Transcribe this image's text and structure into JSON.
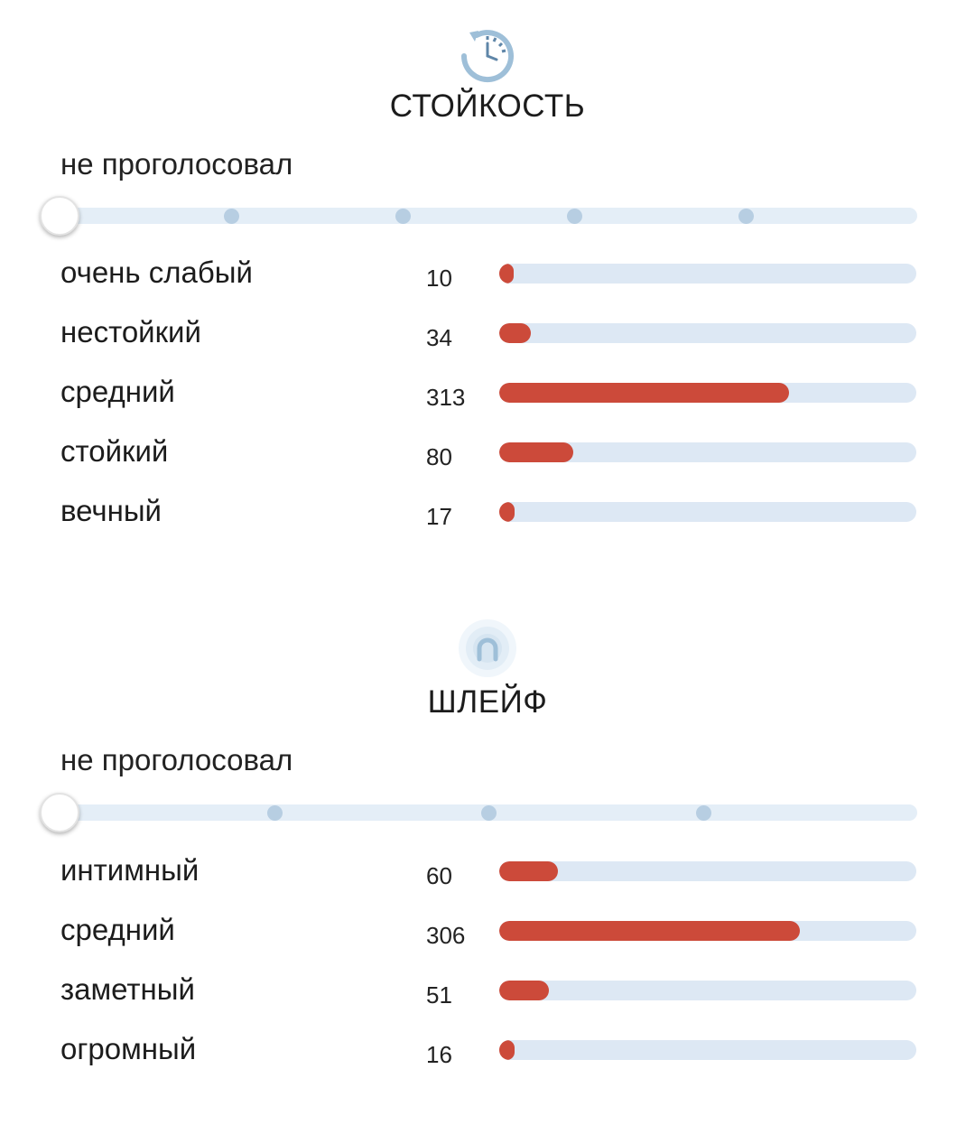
{
  "colors": {
    "accent_bar": "#cc4a3a",
    "track": "#dde8f4",
    "slider_track": "#e4eef7",
    "slider_dot": "#b7cee2",
    "icon": "#9ebfd8"
  },
  "sections": [
    {
      "icon": "stopwatch-icon",
      "title": "СТОЙКОСТЬ",
      "vote_status": "не проголосовал",
      "slider_stops": 6,
      "max_count": 450,
      "rows": [
        {
          "label": "очень слабый",
          "count": "10",
          "value": 10
        },
        {
          "label": "нестойкий",
          "count": "34",
          "value": 34
        },
        {
          "label": "средний",
          "count": "313",
          "value": 313
        },
        {
          "label": "стойкий",
          "count": "80",
          "value": 80
        },
        {
          "label": "вечный",
          "count": "17",
          "value": 17
        }
      ]
    },
    {
      "icon": "sillage-person-icon",
      "title": "ШЛЕЙФ",
      "vote_status": "не проголосовал",
      "slider_stops": 5,
      "max_count": 425,
      "rows": [
        {
          "label": "интимный",
          "count": "60",
          "value": 60
        },
        {
          "label": "средний",
          "count": "306",
          "value": 306
        },
        {
          "label": "заметный",
          "count": "51",
          "value": 51
        },
        {
          "label": "огромный",
          "count": "16",
          "value": 16
        }
      ]
    }
  ]
}
